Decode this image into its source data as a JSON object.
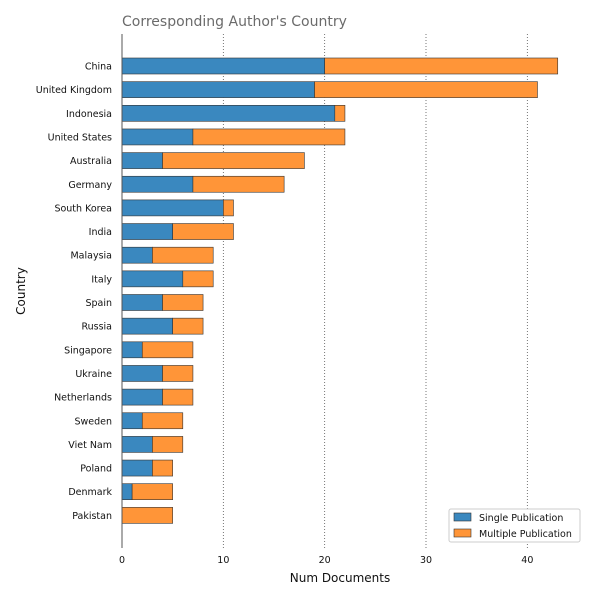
{
  "chart_data": {
    "type": "bar",
    "orientation": "horizontal",
    "stacked": true,
    "title": "Corresponding Author's Country",
    "xlabel": "Num Documents",
    "ylabel": "Country",
    "xlim": [
      0,
      45
    ],
    "xticks": [
      "0",
      "10",
      "20",
      "30",
      "40"
    ],
    "grid": "vertical dotted",
    "legend_position": "bottom-right",
    "categories": [
      "China",
      "United Kingdom",
      "Indonesia",
      "United States",
      "Australia",
      "Germany",
      "South Korea",
      "India",
      "Malaysia",
      "Italy",
      "Spain",
      "Russia",
      "Singapore",
      "Ukraine",
      "Netherlands",
      "Sweden",
      "Viet Nam",
      "Poland",
      "Denmark",
      "Pakistan"
    ],
    "series": [
      {
        "name": "Single Publication",
        "color": "#3a88bf",
        "values": [
          20,
          19,
          21,
          7,
          4,
          7,
          10,
          5,
          3,
          6,
          4,
          5,
          2,
          4,
          4,
          2,
          3,
          3,
          1,
          0
        ]
      },
      {
        "name": "Multiple Publication",
        "color": "#ff9538",
        "values": [
          23,
          22,
          1,
          15,
          14,
          9,
          1,
          6,
          6,
          3,
          4,
          3,
          5,
          3,
          3,
          4,
          3,
          2,
          4,
          5
        ]
      }
    ]
  }
}
